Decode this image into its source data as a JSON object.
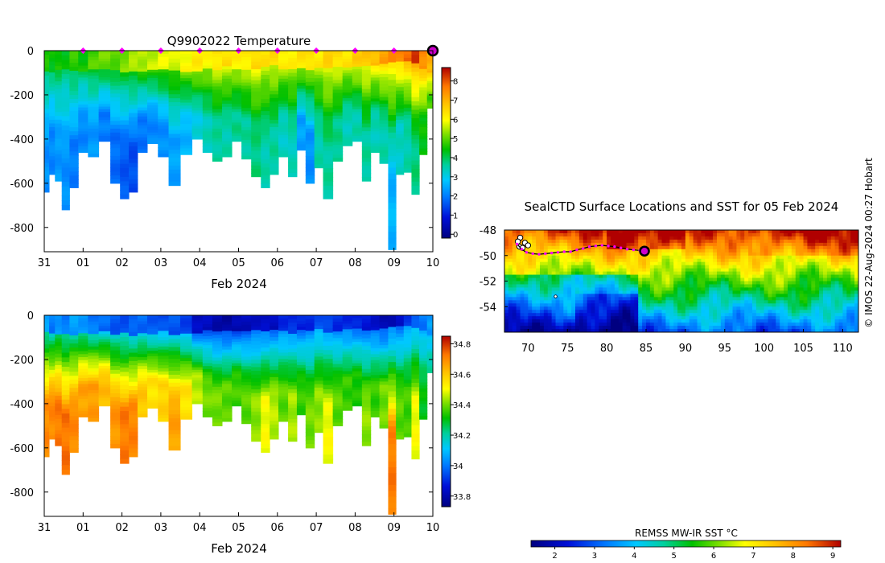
{
  "chart_data": [
    {
      "type": "heatmap",
      "title": "Q9902022  Temperature",
      "xlabel": "Feb 2024",
      "ylabel": "",
      "x_ticks": [
        "31",
        "01",
        "02",
        "03",
        "04",
        "05",
        "06",
        "07",
        "08",
        "09",
        "10"
      ],
      "x_range_days": [
        0,
        10
      ],
      "y_ticks": [
        0,
        -200,
        -400,
        -600,
        -800
      ],
      "ylim": [
        -910,
        0
      ],
      "colorbar": {
        "ticks": [
          0,
          1,
          2,
          3,
          4,
          5,
          6,
          7,
          8
        ],
        "min": -0.2,
        "max": 8.7
      },
      "surface_markers_days": [
        1,
        2,
        3,
        4,
        5,
        6,
        7,
        8,
        9
      ],
      "last_position_day": 10,
      "profiles": {
        "x_days": [
          0.05,
          0.2,
          0.35,
          0.55,
          0.75,
          1.0,
          1.25,
          1.55,
          1.85,
          2.05,
          2.3,
          2.5,
          2.8,
          3.05,
          3.35,
          3.65,
          3.95,
          4.2,
          4.45,
          4.7,
          4.95,
          5.2,
          5.45,
          5.7,
          5.9,
          6.15,
          6.4,
          6.6,
          6.85,
          7.05,
          7.3,
          7.55,
          7.8,
          8.05,
          8.3,
          8.5,
          8.75,
          8.95,
          9.15,
          9.35,
          9.55,
          9.75,
          9.95
        ],
        "max_depth_m": [
          640,
          560,
          590,
          720,
          620,
          460,
          480,
          410,
          600,
          670,
          640,
          460,
          420,
          480,
          610,
          470,
          400,
          460,
          500,
          480,
          410,
          490,
          570,
          620,
          560,
          480,
          570,
          450,
          600,
          530,
          670,
          500,
          430,
          410,
          590,
          460,
          510,
          900,
          560,
          550,
          650,
          470,
          260
        ],
        "mixed_layer_depth_m": [
          90,
          95,
          90,
          85,
          100,
          95,
          90,
          85,
          90,
          95,
          100,
          95,
          90,
          85,
          90,
          95,
          90,
          80,
          85,
          75,
          80,
          85,
          80,
          75,
          70,
          80,
          85,
          80,
          80,
          75,
          85,
          80,
          75,
          70,
          75,
          70,
          65,
          60,
          50,
          45,
          55,
          80,
          100
        ],
        "surface_temp_c": [
          4.5,
          4.4,
          4.6,
          4.3,
          4.7,
          4.5,
          4.9,
          5.1,
          5.0,
          5.2,
          5.4,
          5.5,
          5.6,
          5.8,
          5.7,
          6.0,
          6.2,
          6.0,
          6.3,
          6.4,
          6.1,
          6.2,
          6.5,
          6.3,
          6.4,
          6.2,
          6.1,
          6.3,
          6.4,
          6.2,
          6.5,
          6.4,
          6.3,
          6.6,
          6.7,
          6.9,
          7.2,
          7.4,
          7.6,
          7.9,
          8.2,
          7.5,
          7.0
        ],
        "deep_temp_c": [
          2.2,
          2.1,
          2.3,
          2.2,
          2.0,
          2.1,
          2.3,
          2.0,
          1.8,
          1.6,
          1.5,
          1.9,
          2.1,
          2.2,
          2.4,
          2.6,
          3.1,
          3.4,
          3.6,
          3.5,
          3.7,
          3.6,
          3.8,
          3.5,
          3.6,
          3.3,
          3.4,
          2.4,
          2.2,
          3.5,
          3.6,
          3.7,
          3.4,
          3.5,
          3.6,
          3.4,
          3.5,
          2.6,
          3.3,
          3.5,
          3.8,
          4.4,
          4.8
        ]
      }
    },
    {
      "type": "heatmap",
      "title": "",
      "xlabel": "Feb 2024",
      "ylabel": "",
      "x_ticks": [
        "31",
        "01",
        "02",
        "03",
        "04",
        "05",
        "06",
        "07",
        "08",
        "09",
        "10"
      ],
      "x_range_days": [
        0,
        10
      ],
      "y_ticks": [
        0,
        -200,
        -400,
        -600,
        -800
      ],
      "ylim": [
        -910,
        0
      ],
      "colorbar": {
        "ticks": [
          "33.8",
          "34",
          "34.2",
          "34.4",
          "34.6",
          "34.8"
        ],
        "min": 33.73,
        "max": 34.85
      },
      "profiles": {
        "surface_sal_psu": [
          34.05,
          34.0,
          34.05,
          34.0,
          34.05,
          34.05,
          34.0,
          33.98,
          33.96,
          33.95,
          33.96,
          33.98,
          33.96,
          33.94,
          33.95,
          33.93,
          33.83,
          33.82,
          33.8,
          33.78,
          33.8,
          33.82,
          33.84,
          33.83,
          33.82,
          33.9,
          33.9,
          33.88,
          33.9,
          33.95,
          33.92,
          33.9,
          33.9,
          33.88,
          33.86,
          33.85,
          33.8,
          33.78,
          33.85,
          33.92,
          33.95,
          34.0,
          34.05
        ],
        "bottom_sal_psu": [
          34.7,
          34.7,
          34.72,
          34.73,
          34.7,
          34.66,
          34.67,
          34.62,
          34.68,
          34.72,
          34.71,
          34.6,
          34.55,
          34.58,
          34.66,
          34.55,
          34.45,
          34.4,
          34.4,
          34.38,
          34.36,
          34.38,
          34.42,
          34.5,
          34.45,
          34.38,
          34.44,
          34.35,
          34.4,
          34.42,
          34.5,
          34.38,
          34.35,
          34.33,
          34.42,
          34.35,
          34.4,
          34.72,
          34.38,
          34.36,
          34.5,
          34.3,
          34.2
        ]
      }
    },
    {
      "type": "heatmap",
      "title": "SealCTD Surface Locations and SST for 05 Feb 2024",
      "xlabel": "",
      "ylabel": "",
      "x_ticks": [
        "70",
        "75",
        "80",
        "85",
        "90",
        "95",
        "100",
        "105",
        "110"
      ],
      "y_ticks": [
        "-48",
        "-50",
        "-52",
        "-54"
      ],
      "xlim": [
        67,
        112
      ],
      "ylim": [
        -56,
        -48
      ],
      "colorbar": {
        "label": "REMSS MW-IR SST °C",
        "ticks": [
          "2",
          "3",
          "4",
          "5",
          "6",
          "7",
          "8",
          "9"
        ],
        "min": 1.4,
        "max": 9.2
      },
      "track": {
        "lon": [
          68.6,
          69.2,
          69.8,
          70.6,
          71.4,
          72.2,
          73.0,
          73.8,
          74.6,
          75.4,
          76.2,
          77.0,
          77.8,
          78.6,
          79.4,
          80.2,
          81.0,
          81.8,
          82.6,
          83.4,
          84.2,
          84.8
        ],
        "lat": [
          -49.1,
          -49.5,
          -49.75,
          -49.85,
          -49.9,
          -49.85,
          -49.8,
          -49.75,
          -49.7,
          -49.7,
          -49.55,
          -49.45,
          -49.3,
          -49.25,
          -49.2,
          -49.25,
          -49.3,
          -49.4,
          -49.5,
          -49.55,
          -49.6,
          -49.65
        ]
      },
      "current_position": {
        "lon": 84.8,
        "lat": -49.65
      }
    }
  ],
  "footer": {
    "copyright": "© IMOS 22-Aug-2024 00:27 Hobart"
  }
}
